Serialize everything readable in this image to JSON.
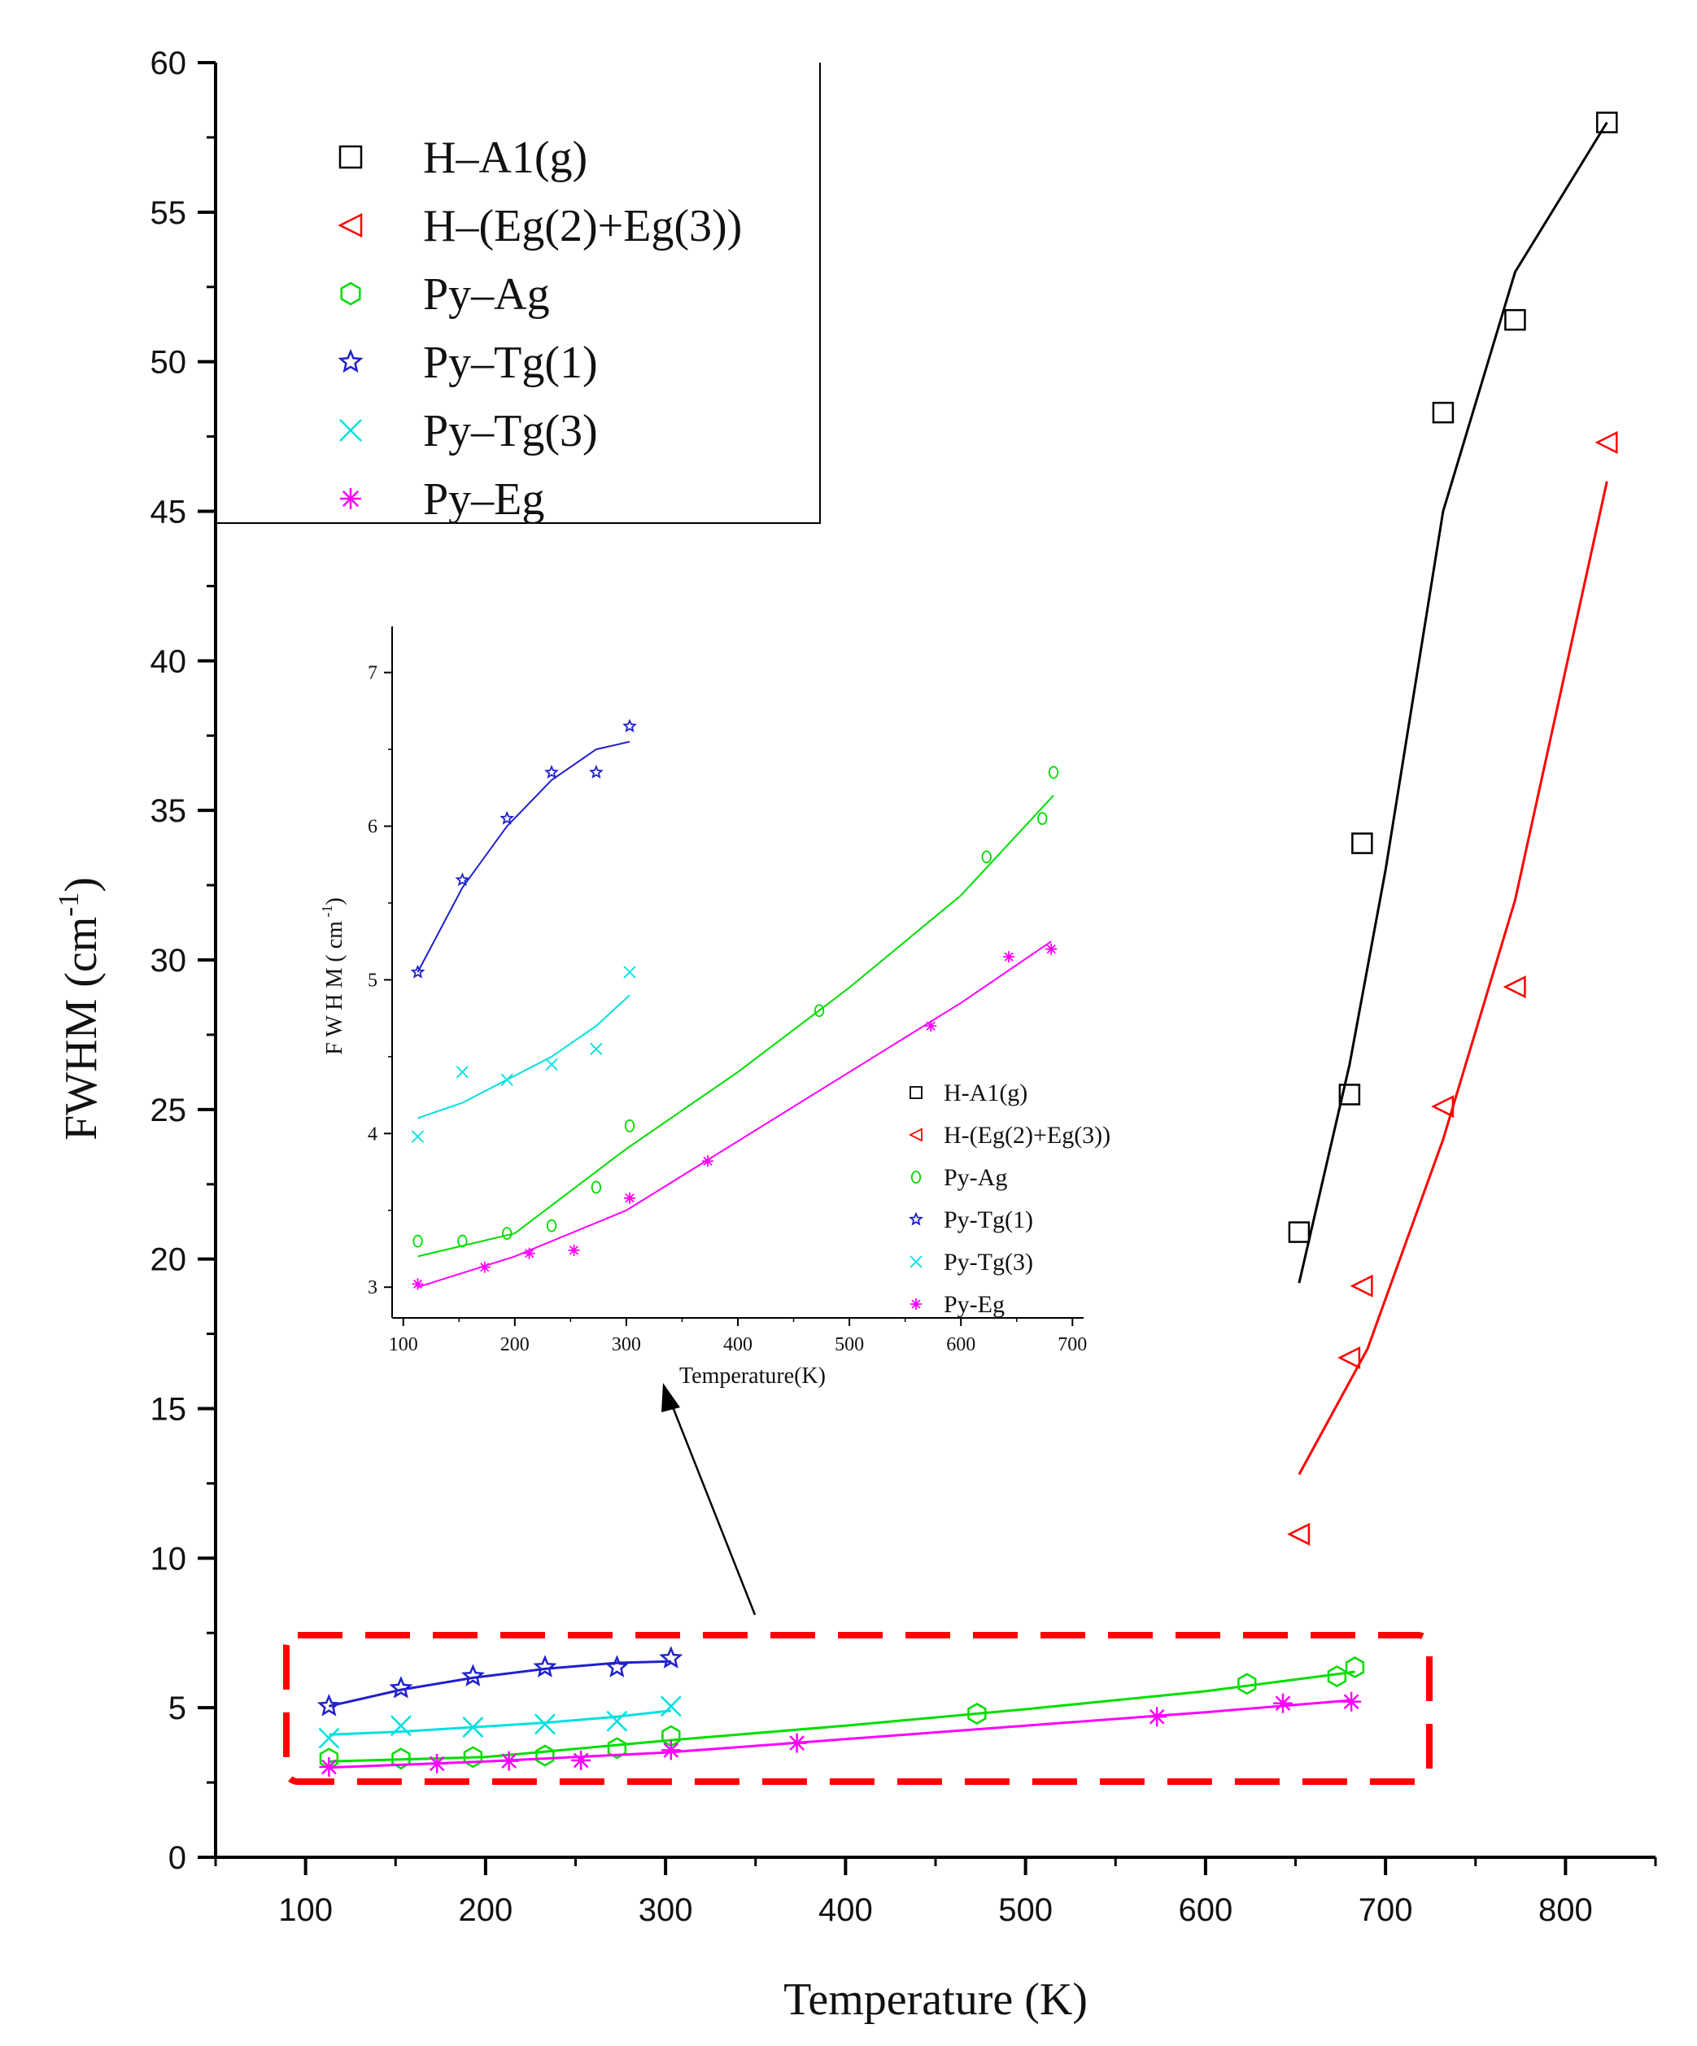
{
  "chart_data": [
    {
      "type": "scatter",
      "role": "main",
      "xlabel": "Temperature (K)",
      "ylabel": "FWHM (cm-1)",
      "ylabel_parts": {
        "main": "FWHM (cm",
        "sup": "-1",
        "close": ")"
      },
      "xlim": [
        50,
        850
      ],
      "ylim": [
        0,
        60
      ],
      "xticks": [
        100,
        200,
        300,
        400,
        500,
        600,
        700,
        800
      ],
      "yticks": [
        0,
        5,
        10,
        15,
        20,
        25,
        30,
        35,
        40,
        45,
        50,
        55,
        60
      ],
      "legend_position": "top-left",
      "series": [
        {
          "name": "H–A1(g)",
          "color": "#000000",
          "marker": "square",
          "points": [
            [
              652,
              20.9
            ],
            [
              680,
              25.5
            ],
            [
              687,
              33.9
            ],
            [
              732,
              48.3
            ],
            [
              772,
              51.4
            ],
            [
              823,
              58.0
            ]
          ],
          "fit": [
            [
              652,
              19.2
            ],
            [
              680,
              26.5
            ],
            [
              700,
              33.0
            ],
            [
              732,
              45.0
            ],
            [
              772,
              53.0
            ],
            [
              823,
              58.0
            ]
          ]
        },
        {
          "name": "H–(Eg(2)+Eg(3))",
          "color": "#ff0000",
          "marker": "triangle-left",
          "points": [
            [
              652,
              10.8
            ],
            [
              680,
              16.7
            ],
            [
              687,
              19.1
            ],
            [
              732,
              25.1
            ],
            [
              772,
              29.1
            ],
            [
              823,
              47.3
            ]
          ],
          "fit": [
            [
              652,
              12.8
            ],
            [
              690,
              17.0
            ],
            [
              732,
              24.0
            ],
            [
              772,
              32.0
            ],
            [
              823,
              46.0
            ]
          ]
        },
        {
          "name": "Py–Ag",
          "color": "#00dd00",
          "marker": "hexagon",
          "points": [
            [
              113,
              3.3
            ],
            [
              153,
              3.3
            ],
            [
              193,
              3.35
            ],
            [
              233,
              3.4
            ],
            [
              273,
              3.65
            ],
            [
              303,
              4.05
            ],
            [
              473,
              4.8
            ],
            [
              623,
              5.8
            ],
            [
              673,
              6.05
            ],
            [
              683,
              6.35
            ]
          ],
          "fit": [
            [
              113,
              3.2
            ],
            [
              200,
              3.35
            ],
            [
              300,
              3.9
            ],
            [
              400,
              4.4
            ],
            [
              500,
              4.95
            ],
            [
              600,
              5.55
            ],
            [
              683,
              6.2
            ]
          ]
        },
        {
          "name": "Py–Tg(1)",
          "color": "#2020cc",
          "marker": "star",
          "points": [
            [
              113,
              5.05
            ],
            [
              153,
              5.65
            ],
            [
              193,
              6.05
            ],
            [
              233,
              6.35
            ],
            [
              273,
              6.35
            ],
            [
              303,
              6.65
            ]
          ],
          "fit": [
            [
              113,
              5.05
            ],
            [
              153,
              5.6
            ],
            [
              193,
              6.0
            ],
            [
              233,
              6.3
            ],
            [
              273,
              6.5
            ],
            [
              303,
              6.55
            ]
          ]
        },
        {
          "name": "Py–Tg(3)",
          "color": "#00e0e0",
          "marker": "x",
          "points": [
            [
              113,
              3.98
            ],
            [
              153,
              4.4
            ],
            [
              193,
              4.35
            ],
            [
              233,
              4.45
            ],
            [
              273,
              4.55
            ],
            [
              303,
              5.05
            ]
          ],
          "fit": [
            [
              113,
              4.1
            ],
            [
              153,
              4.2
            ],
            [
              193,
              4.35
            ],
            [
              233,
              4.5
            ],
            [
              273,
              4.7
            ],
            [
              303,
              4.9
            ]
          ]
        },
        {
          "name": "Py–Eg",
          "color": "#ff00ff",
          "marker": "asterisk",
          "points": [
            [
              113,
              3.02
            ],
            [
              173,
              3.13
            ],
            [
              213,
              3.22
            ],
            [
              253,
              3.24
            ],
            [
              303,
              3.58
            ],
            [
              373,
              3.82
            ],
            [
              573,
              4.7
            ],
            [
              643,
              5.15
            ],
            [
              681,
              5.2
            ]
          ],
          "fit": [
            [
              113,
              3.0
            ],
            [
              200,
              3.2
            ],
            [
              300,
              3.5
            ],
            [
              400,
              3.95
            ],
            [
              500,
              4.4
            ],
            [
              600,
              4.85
            ],
            [
              681,
              5.25
            ]
          ]
        }
      ]
    },
    {
      "type": "scatter",
      "role": "inset",
      "xlabel": "Temperature(K)",
      "ylabel": "F W H M ( cm -1)",
      "ylabel_parts": {
        "main": "F W H M  ( cm",
        "sup": " -1",
        "close": ")"
      },
      "xlim": [
        90,
        710
      ],
      "ylim": [
        2.8,
        7.3
      ],
      "xticks": [
        100,
        200,
        300,
        400,
        500,
        600,
        700
      ],
      "yticks": [
        3,
        4,
        5,
        6,
        7
      ],
      "legend_position": "bottom-right",
      "series_ref": "same six series as main chart, shown for the 100-700 K range"
    }
  ]
}
